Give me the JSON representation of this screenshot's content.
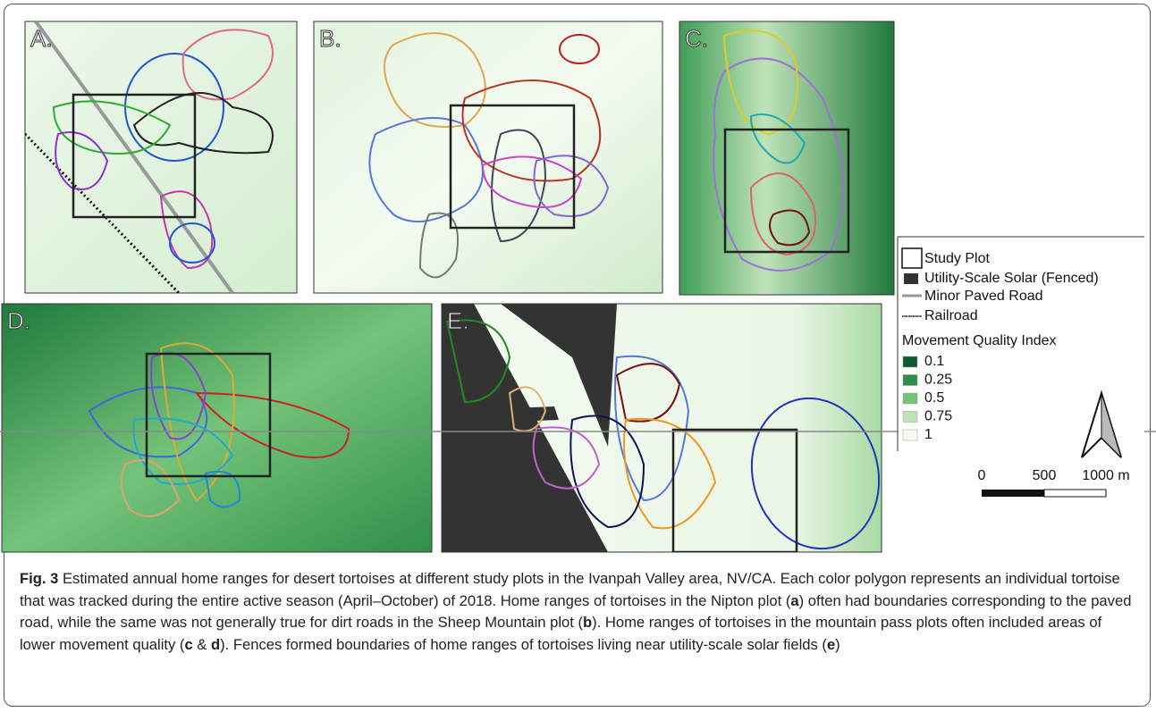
{
  "panels": [
    {
      "label": "A."
    },
    {
      "label": "B."
    },
    {
      "label": "C."
    },
    {
      "label": "D."
    },
    {
      "label": "E."
    }
  ],
  "legend": {
    "items": [
      "Study Plot",
      "Utility-Scale Solar (Fenced)",
      "Minor Paved Road",
      "Railroad"
    ],
    "title": "Movement Quality Index",
    "classes": [
      {
        "label": "0.1",
        "color": "#0d5b2c"
      },
      {
        "label": "0.25",
        "color": "#2f8f48"
      },
      {
        "label": "0.5",
        "color": "#74c37a"
      },
      {
        "label": "0.75",
        "color": "#bfe3b9"
      },
      {
        "label": "1",
        "color": "#f4fbf1"
      }
    ]
  },
  "scale_bar": {
    "labels": [
      "0",
      "500",
      "1000 m"
    ]
  },
  "caption": [
    {
      "text": "Fig. 3",
      "bold": true
    },
    {
      "text": " Estimated annual home ranges for desert tortoises at different study plots in the Ivanpah Valley area, NV/CA. Each color polygon represents an individual tortoise that was tracked during the entire active season (April–October) of 2018. Home ranges of tortoises in the Nipton plot (",
      "bold": false
    },
    {
      "text": "a",
      "bold": true
    },
    {
      "text": ") often had boundaries corresponding to the paved road, while the same was not generally true for dirt roads in the Sheep Mountain plot (",
      "bold": false
    },
    {
      "text": "b",
      "bold": true
    },
    {
      "text": "). Home ranges of tortoises in the mountain pass plots often included areas of lower movement quality (",
      "bold": false
    },
    {
      "text": "c",
      "bold": true
    },
    {
      "text": " & ",
      "bold": false
    },
    {
      "text": "d",
      "bold": true
    },
    {
      "text": "). Fences formed boundaries of home ranges of tortoises living near utility-scale solar fields (",
      "bold": false
    },
    {
      "text": "e",
      "bold": true
    },
    {
      "text": ")",
      "bold": false
    }
  ]
}
